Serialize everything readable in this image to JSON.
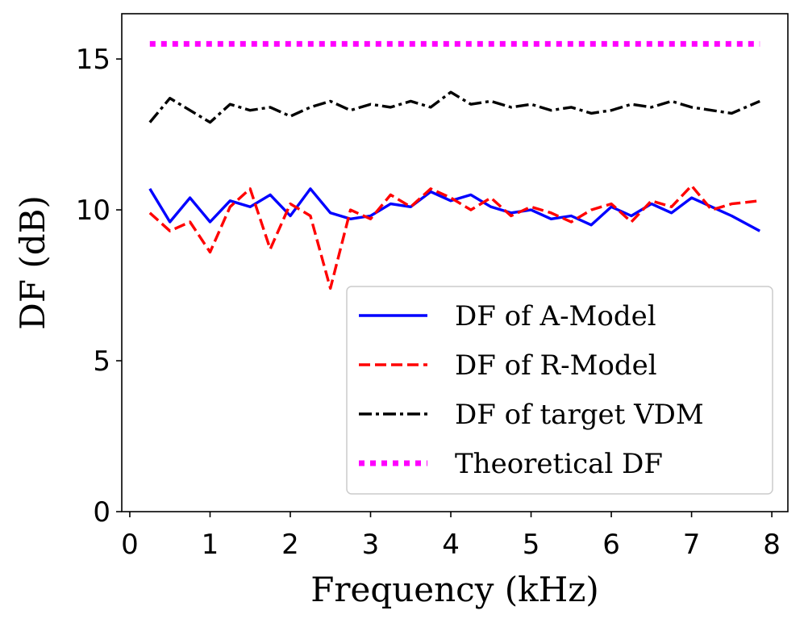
{
  "chart_data": {
    "type": "line",
    "xlabel": "Frequency (kHz)",
    "ylabel": "DF (dB)",
    "xlim": [
      -0.1,
      8.2
    ],
    "ylim": [
      0,
      16.5
    ],
    "xticks": [
      "0",
      "1",
      "2",
      "3",
      "4",
      "5",
      "6",
      "7",
      "8"
    ],
    "yticks": [
      "0",
      "5",
      "10",
      "15"
    ],
    "grid": false,
    "legend_position": "lower-right",
    "x": [
      0.25,
      0.5,
      0.75,
      1.0,
      1.25,
      1.5,
      1.75,
      2.0,
      2.25,
      2.5,
      2.75,
      3.0,
      3.25,
      3.5,
      3.75,
      4.0,
      4.25,
      4.5,
      4.75,
      5.0,
      5.25,
      5.5,
      5.75,
      6.0,
      6.25,
      6.5,
      6.75,
      7.0,
      7.25,
      7.5,
      7.85
    ],
    "series": [
      {
        "name": "DF of A-Model",
        "color": "#0000ff",
        "style": "solid",
        "values": [
          10.7,
          9.6,
          10.4,
          9.6,
          10.3,
          10.1,
          10.5,
          9.8,
          10.7,
          9.9,
          9.7,
          9.8,
          10.2,
          10.1,
          10.6,
          10.3,
          10.5,
          10.1,
          9.9,
          10.0,
          9.7,
          9.8,
          9.5,
          10.1,
          9.8,
          10.2,
          9.9,
          10.4,
          10.1,
          9.8,
          9.3
        ]
      },
      {
        "name": "DF of R-Model",
        "color": "#ff0000",
        "style": "dashed",
        "values": [
          9.9,
          9.3,
          9.6,
          8.6,
          10.1,
          10.7,
          8.7,
          10.2,
          9.8,
          7.4,
          10.0,
          9.7,
          10.5,
          10.1,
          10.7,
          10.4,
          10.0,
          10.4,
          9.8,
          10.1,
          9.9,
          9.6,
          10.0,
          10.2,
          9.6,
          10.3,
          10.1,
          10.8,
          10.0,
          10.2,
          10.3
        ]
      },
      {
        "name": "DF of target VDM",
        "color": "#000000",
        "style": "dashdot",
        "values": [
          12.9,
          13.7,
          13.3,
          12.9,
          13.5,
          13.3,
          13.4,
          13.1,
          13.4,
          13.6,
          13.3,
          13.5,
          13.4,
          13.6,
          13.4,
          13.9,
          13.5,
          13.6,
          13.4,
          13.5,
          13.3,
          13.4,
          13.2,
          13.3,
          13.5,
          13.4,
          13.6,
          13.4,
          13.3,
          13.2,
          13.6
        ]
      },
      {
        "name": "Theoretical DF",
        "color": "#ff00ff",
        "style": "dotted",
        "values": [
          15.5,
          15.5,
          15.5,
          15.5,
          15.5,
          15.5,
          15.5,
          15.5,
          15.5,
          15.5,
          15.5,
          15.5,
          15.5,
          15.5,
          15.5,
          15.5,
          15.5,
          15.5,
          15.5,
          15.5,
          15.5,
          15.5,
          15.5,
          15.5,
          15.5,
          15.5,
          15.5,
          15.5,
          15.5,
          15.5,
          15.5
        ]
      }
    ]
  }
}
